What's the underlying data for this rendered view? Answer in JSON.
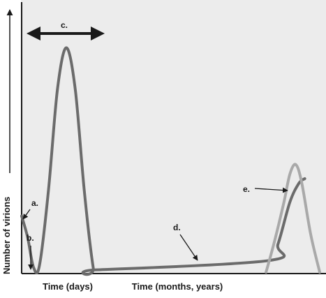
{
  "chart_data": {
    "type": "line",
    "title": "",
    "xlabel": "",
    "ylabel": "Number of virions",
    "x_segments": [
      "Time (days)",
      "Time (months, years)"
    ],
    "grid": false,
    "legend": "none",
    "colors": {
      "background": "#ececec",
      "axis": "#1a1a1a",
      "main_series": "#6b6b6b",
      "late_series": "#a9a9a9"
    },
    "series": [
      {
        "points": [
          [
            0.0,
            0.24
          ],
          [
            0.02,
            0.15
          ],
          [
            0.04,
            0.02
          ],
          [
            0.06,
            0.03
          ],
          [
            0.09,
            0.35
          ],
          [
            0.12,
            0.78
          ],
          [
            0.15,
            0.96
          ],
          [
            0.18,
            0.78
          ],
          [
            0.21,
            0.35
          ],
          [
            0.24,
            0.02
          ],
          [
            0.25,
            0.01
          ],
          [
            0.83,
            0.05
          ],
          [
            0.86,
            0.12
          ],
          [
            0.9,
            0.3
          ],
          [
            0.93,
            0.38
          ],
          [
            0.95,
            0.4
          ]
        ]
      },
      {
        "points": [
          [
            0.82,
            0.0
          ],
          [
            0.85,
            0.14
          ],
          [
            0.88,
            0.3
          ],
          [
            0.9,
            0.42
          ],
          [
            0.92,
            0.46
          ],
          [
            0.94,
            0.38
          ],
          [
            0.97,
            0.16
          ],
          [
            1.0,
            0.0
          ]
        ]
      }
    ],
    "annotations": [
      {
        "id": "a",
        "text": "a."
      },
      {
        "id": "b",
        "text": "b."
      },
      {
        "id": "c",
        "text": "c."
      },
      {
        "id": "d",
        "text": "d."
      },
      {
        "id": "e",
        "text": "e."
      }
    ]
  }
}
